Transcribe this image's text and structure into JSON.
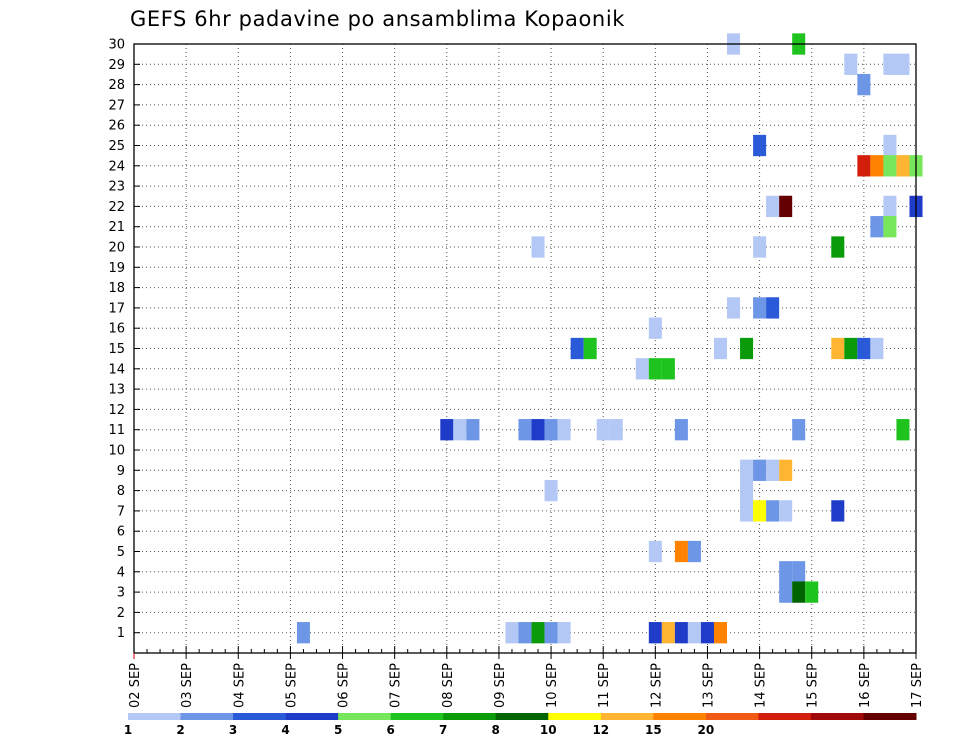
{
  "chart_data": {
    "type": "heatmap",
    "title": "GEFS 6hr padavine po ansamblima Kopaonik",
    "xlabel": "",
    "ylabel": "",
    "grid": true,
    "x_range": [
      "02 SEP 00z",
      "17 SEP 00z"
    ],
    "x_step_hours": 6,
    "x_tick_labels": [
      "02 SEP",
      "03 SEP",
      "04 SEP",
      "05 SEP",
      "06 SEP",
      "07 SEP",
      "08 SEP",
      "09 SEP",
      "10 SEP",
      "11 SEP",
      "12 SEP",
      "13 SEP",
      "14 SEP",
      "15 SEP",
      "16 SEP",
      "17 SEP"
    ],
    "ylim": [
      0,
      30
    ],
    "y_tick_labels": [
      "1",
      "2",
      "3",
      "4",
      "5",
      "6",
      "7",
      "8",
      "9",
      "10",
      "11",
      "12",
      "13",
      "14",
      "15",
      "16",
      "17",
      "18",
      "19",
      "20",
      "21",
      "22",
      "23",
      "24",
      "25",
      "26",
      "27",
      "28",
      "29",
      "30"
    ],
    "colorbar": {
      "labels": [
        "1",
        "2",
        "3",
        "4",
        "5",
        "6",
        "7",
        "8",
        "10",
        "12",
        "15",
        "20"
      ],
      "colors": [
        "#b4c8f5",
        "#6e96e6",
        "#2a5ad7",
        "#1e3cc8",
        "#78e65a",
        "#1ec31e",
        "#0a9a0a",
        "#006400",
        "#ffff00",
        "#ffb432",
        "#ff8200",
        "#f05a14",
        "#d21e0a",
        "#a00a0a",
        "#640000"
      ]
    },
    "cells": [
      {
        "member": 30,
        "time": "13 SEP 12z",
        "color": "#b4c8f5"
      },
      {
        "member": 30,
        "time": "14 SEP 18z",
        "color": "#1ec31e"
      },
      {
        "member": 29,
        "time": "15 SEP 18z",
        "color": "#b4c8f5"
      },
      {
        "member": 29,
        "time": "16 SEP 12z",
        "color": "#b4c8f5"
      },
      {
        "member": 29,
        "time": "16 SEP 18z",
        "color": "#b4c8f5"
      },
      {
        "member": 28,
        "time": "16 SEP 00z",
        "color": "#6e96e6"
      },
      {
        "member": 25,
        "time": "14 SEP 00z",
        "color": "#2a5ad7"
      },
      {
        "member": 25,
        "time": "16 SEP 12z",
        "color": "#b4c8f5"
      },
      {
        "member": 24,
        "time": "16 SEP 00z",
        "color": "#d21e0a"
      },
      {
        "member": 24,
        "time": "16 SEP 06z",
        "color": "#ff8200"
      },
      {
        "member": 24,
        "time": "16 SEP 12z",
        "color": "#78e65a"
      },
      {
        "member": 24,
        "time": "16 SEP 18z",
        "color": "#ffb432"
      },
      {
        "member": 24,
        "time": "17 SEP 00z",
        "color": "#78e65a"
      },
      {
        "member": 22,
        "time": "14 SEP 06z",
        "color": "#b4c8f5"
      },
      {
        "member": 22,
        "time": "14 SEP 12z",
        "color": "#640000"
      },
      {
        "member": 22,
        "time": "16 SEP 12z",
        "color": "#b4c8f5"
      },
      {
        "member": 22,
        "time": "17 SEP 00z",
        "color": "#1e3cc8"
      },
      {
        "member": 21,
        "time": "16 SEP 06z",
        "color": "#6e96e6"
      },
      {
        "member": 21,
        "time": "16 SEP 12z",
        "color": "#78e65a"
      },
      {
        "member": 20,
        "time": "09 SEP 18z",
        "color": "#b4c8f5"
      },
      {
        "member": 20,
        "time": "14 SEP 00z",
        "color": "#b4c8f5"
      },
      {
        "member": 20,
        "time": "15 SEP 12z",
        "color": "#0a9a0a"
      },
      {
        "member": 17,
        "time": "13 SEP 12z",
        "color": "#b4c8f5"
      },
      {
        "member": 17,
        "time": "14 SEP 00z",
        "color": "#6e96e6"
      },
      {
        "member": 17,
        "time": "14 SEP 06z",
        "color": "#2a5ad7"
      },
      {
        "member": 16,
        "time": "12 SEP 00z",
        "color": "#b4c8f5"
      },
      {
        "member": 15,
        "time": "10 SEP 12z",
        "color": "#2a5ad7"
      },
      {
        "member": 15,
        "time": "10 SEP 18z",
        "color": "#1ec31e"
      },
      {
        "member": 15,
        "time": "13 SEP 06z",
        "color": "#b4c8f5"
      },
      {
        "member": 15,
        "time": "13 SEP 18z",
        "color": "#0a9a0a"
      },
      {
        "member": 15,
        "time": "15 SEP 12z",
        "color": "#ffb432"
      },
      {
        "member": 15,
        "time": "15 SEP 18z",
        "color": "#0a9a0a"
      },
      {
        "member": 15,
        "time": "16 SEP 00z",
        "color": "#2a5ad7"
      },
      {
        "member": 15,
        "time": "16 SEP 06z",
        "color": "#b4c8f5"
      },
      {
        "member": 14,
        "time": "11 SEP 18z",
        "color": "#b4c8f5"
      },
      {
        "member": 14,
        "time": "12 SEP 00z",
        "color": "#1ec31e"
      },
      {
        "member": 14,
        "time": "12 SEP 06z",
        "color": "#1ec31e"
      },
      {
        "member": 11,
        "time": "08 SEP 00z",
        "color": "#1e3cc8"
      },
      {
        "member": 11,
        "time": "08 SEP 06z",
        "color": "#b4c8f5"
      },
      {
        "member": 11,
        "time": "08 SEP 12z",
        "color": "#6e96e6"
      },
      {
        "member": 11,
        "time": "09 SEP 12z",
        "color": "#6e96e6"
      },
      {
        "member": 11,
        "time": "09 SEP 18z",
        "color": "#1e3cc8"
      },
      {
        "member": 11,
        "time": "10 SEP 00z",
        "color": "#6e96e6"
      },
      {
        "member": 11,
        "time": "10 SEP 06z",
        "color": "#b4c8f5"
      },
      {
        "member": 11,
        "time": "11 SEP 00z",
        "color": "#b4c8f5"
      },
      {
        "member": 11,
        "time": "11 SEP 06z",
        "color": "#b4c8f5"
      },
      {
        "member": 11,
        "time": "12 SEP 12z",
        "color": "#6e96e6"
      },
      {
        "member": 11,
        "time": "14 SEP 18z",
        "color": "#6e96e6"
      },
      {
        "member": 11,
        "time": "16 SEP 18z",
        "color": "#1ec31e"
      },
      {
        "member": 9,
        "time": "13 SEP 18z",
        "color": "#b4c8f5"
      },
      {
        "member": 9,
        "time": "14 SEP 00z",
        "color": "#6e96e6"
      },
      {
        "member": 9,
        "time": "14 SEP 06z",
        "color": "#b4c8f5"
      },
      {
        "member": 9,
        "time": "14 SEP 12z",
        "color": "#ffb432"
      },
      {
        "member": 8,
        "time": "10 SEP 00z",
        "color": "#b4c8f5"
      },
      {
        "member": 8,
        "time": "13 SEP 18z",
        "color": "#b4c8f5"
      },
      {
        "member": 7,
        "time": "13 SEP 18z",
        "color": "#b4c8f5"
      },
      {
        "member": 7,
        "time": "14 SEP 00z",
        "color": "#ffff00"
      },
      {
        "member": 7,
        "time": "14 SEP 06z",
        "color": "#6e96e6"
      },
      {
        "member": 7,
        "time": "14 SEP 12z",
        "color": "#b4c8f5"
      },
      {
        "member": 7,
        "time": "15 SEP 12z",
        "color": "#1e3cc8"
      },
      {
        "member": 5,
        "time": "12 SEP 00z",
        "color": "#b4c8f5"
      },
      {
        "member": 5,
        "time": "12 SEP 12z",
        "color": "#ff8200"
      },
      {
        "member": 5,
        "time": "12 SEP 18z",
        "color": "#6e96e6"
      },
      {
        "member": 4,
        "time": "14 SEP 12z",
        "color": "#6e96e6"
      },
      {
        "member": 4,
        "time": "14 SEP 18z",
        "color": "#6e96e6"
      },
      {
        "member": 3,
        "time": "14 SEP 12z",
        "color": "#6e96e6"
      },
      {
        "member": 3,
        "time": "14 SEP 18z",
        "color": "#006400"
      },
      {
        "member": 3,
        "time": "15 SEP 00z",
        "color": "#1ec31e"
      },
      {
        "member": 1,
        "time": "05 SEP 06z",
        "color": "#6e96e6"
      },
      {
        "member": 1,
        "time": "09 SEP 06z",
        "color": "#b4c8f5"
      },
      {
        "member": 1,
        "time": "09 SEP 12z",
        "color": "#6e96e6"
      },
      {
        "member": 1,
        "time": "09 SEP 18z",
        "color": "#0a9a0a"
      },
      {
        "member": 1,
        "time": "10 SEP 00z",
        "color": "#6e96e6"
      },
      {
        "member": 1,
        "time": "10 SEP 06z",
        "color": "#b4c8f5"
      },
      {
        "member": 1,
        "time": "12 SEP 00z",
        "color": "#1e3cc8"
      },
      {
        "member": 1,
        "time": "12 SEP 06z",
        "color": "#ffb432"
      },
      {
        "member": 1,
        "time": "12 SEP 12z",
        "color": "#1e3cc8"
      },
      {
        "member": 1,
        "time": "12 SEP 18z",
        "color": "#b4c8f5"
      },
      {
        "member": 1,
        "time": "13 SEP 00z",
        "color": "#1e3cc8"
      },
      {
        "member": 1,
        "time": "13 SEP 06z",
        "color": "#ff8200"
      }
    ]
  }
}
